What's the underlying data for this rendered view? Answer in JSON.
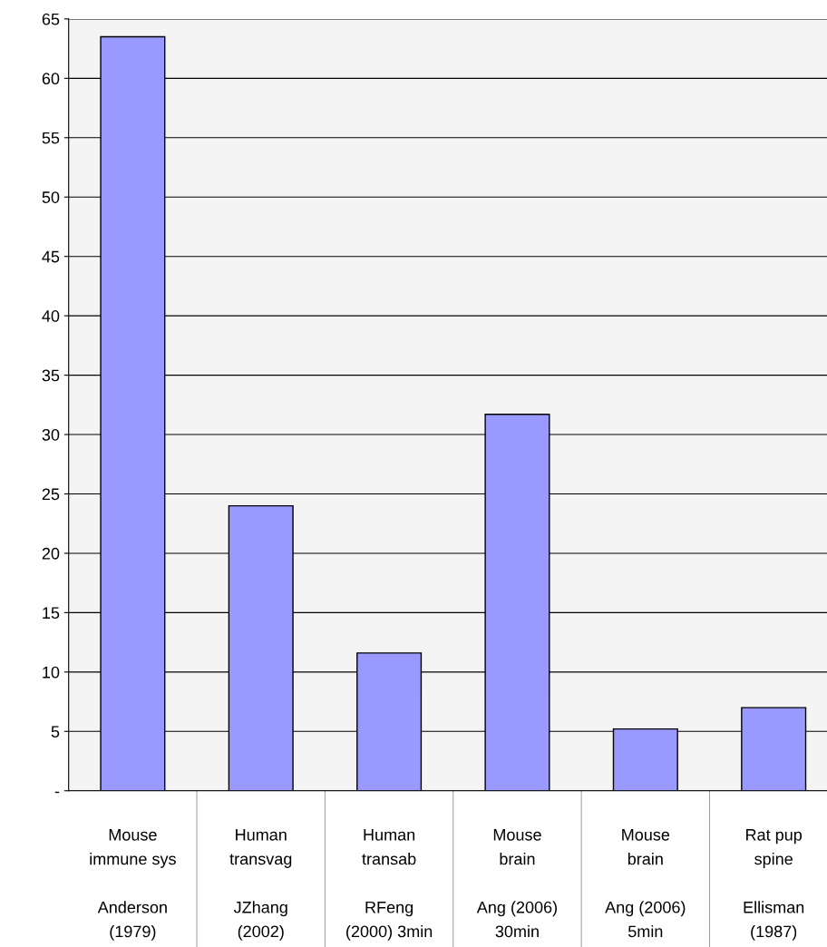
{
  "chart_data": {
    "type": "bar",
    "categories": [
      "Mouse\nimmune sys\n\nAnderson\n(1979)",
      "Human\ntransvag\n\nJZhang\n(2002)",
      "Human\ntransab\n\nRFeng\n(2000) 3min",
      "Mouse\nbrain\n\nAng (2006)\n30min",
      "Mouse\nbrain\n\nAng (2006)\n5min",
      "Rat pup\nspine\n\nEllisman\n(1987)"
    ],
    "values": [
      63.5,
      24,
      11.6,
      31.7,
      5.2,
      7.0
    ],
    "color": "#9999ff",
    "ylim": [
      0,
      65
    ],
    "yticks": [
      {
        "value": 0,
        "label": "-"
      },
      5,
      10,
      15,
      20,
      25,
      30,
      35,
      40,
      45,
      50,
      55,
      60,
      65
    ],
    "grid": "y",
    "legend": false
  }
}
